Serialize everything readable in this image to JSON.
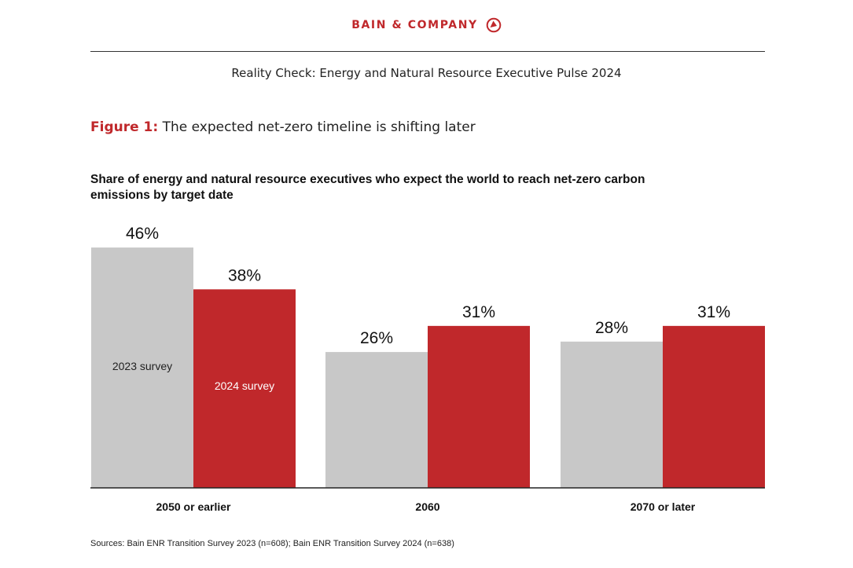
{
  "header": {
    "brand": "BAIN & COMPANY",
    "logo_icon": "bain-circle-logo-icon",
    "report_title": "Reality Check: Energy and Natural Resource Executive Pulse 2024"
  },
  "figure": {
    "label": "Figure 1:",
    "caption": "The expected net-zero timeline is shifting later"
  },
  "chart_data": {
    "type": "bar",
    "title": "Share of energy and natural resource executives who expect the world to reach net-zero carbon emissions by target date",
    "categories": [
      "2050 or earlier",
      "2060",
      "2070 or later"
    ],
    "series": [
      {
        "name": "2023 survey",
        "values": [
          46,
          26,
          28
        ],
        "color": "#c8c8c8",
        "label_color": "#222222"
      },
      {
        "name": "2024 survey",
        "values": [
          38,
          31,
          31
        ],
        "color": "#c0282b",
        "label_color": "#ffffff"
      }
    ],
    "value_format": "percent",
    "ylim": [
      0,
      50
    ],
    "grid": false,
    "legend": "inside-first-group",
    "xlabel": "",
    "ylabel": ""
  },
  "source": "Sources: Bain ENR Transition Survey 2023 (n=608); Bain ENR Transition Survey 2024 (n=638)",
  "colors": {
    "accent": "#c0282b",
    "gray": "#c8c8c8"
  }
}
